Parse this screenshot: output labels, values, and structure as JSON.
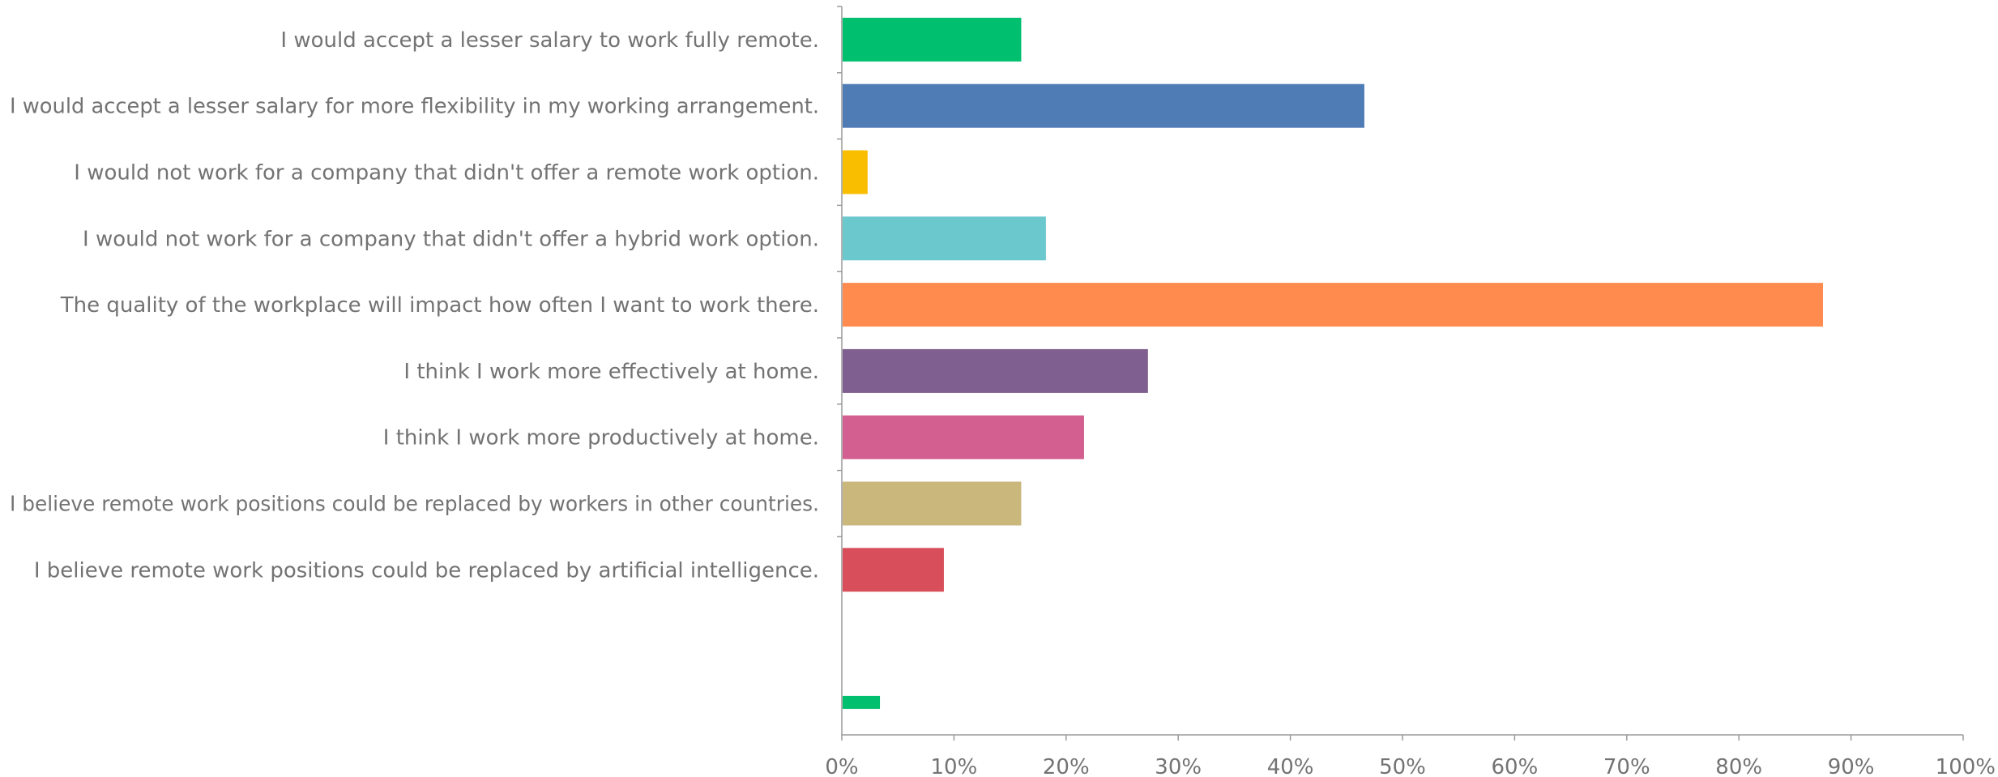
{
  "chart_data": {
    "type": "bar",
    "orientation": "horizontal",
    "categories": [
      "I would accept a lesser salary to work fully remote.",
      "I would accept a lesser salary for more flexibility in my working arrangement.",
      "I would not work for a company that didn't offer a remote work option.",
      "I would not work for a company that didn't offer a hybrid work option.",
      "The quality of the workplace will impact how often I want to work there.",
      "I think I work more effectively at home.",
      "I think I work more productively at home.",
      "I believe remote work positions could be replaced by workers in other countries.",
      "I believe remote work positions could be replaced by artificial intelligence.",
      "",
      ""
    ],
    "values": [
      16,
      46.6,
      2.3,
      18.2,
      87.5,
      27.3,
      21.6,
      16,
      9.1,
      0,
      3.4
    ],
    "colors": [
      "#00bf6f",
      "#507cb6",
      "#f9be00",
      "#6bc8cd",
      "#ff8b4f",
      "#7f5f90",
      "#d25f90",
      "#c9b77c",
      "#d94e5b",
      "#00bf6f",
      "#00bf6f"
    ],
    "xlim": [
      0,
      100
    ],
    "x_ticks": [
      "0%",
      "10%",
      "20%",
      "30%",
      "40%",
      "50%",
      "60%",
      "70%",
      "80%",
      "90%",
      "100%"
    ],
    "grid": false,
    "title": "",
    "xlabel": "",
    "ylabel": ""
  }
}
